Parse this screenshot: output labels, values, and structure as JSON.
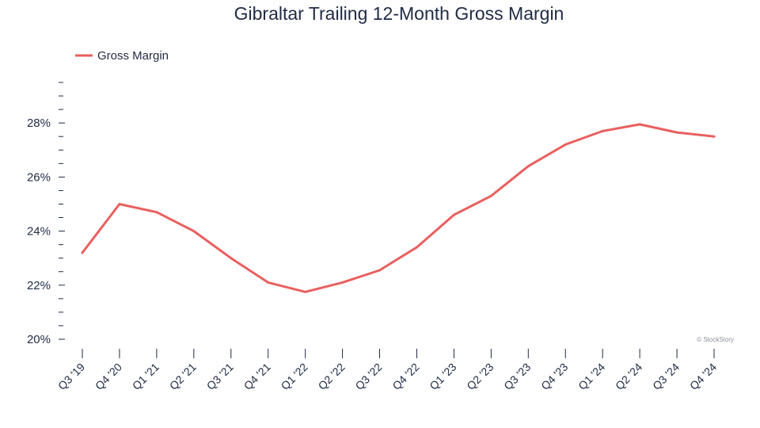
{
  "chart_data": {
    "type": "line",
    "title": "Gibraltar Trailing 12-Month Gross Margin",
    "categories": [
      "Q3 '19",
      "Q4 '20",
      "Q1 '21",
      "Q2 '21",
      "Q3 '21",
      "Q4 '21",
      "Q1 '22",
      "Q2 '22",
      "Q3 '22",
      "Q4 '22",
      "Q1 '23",
      "Q2 '23",
      "Q3 '23",
      "Q4 '23",
      "Q1 '24",
      "Q2 '24",
      "Q3 '24",
      "Q4 '24"
    ],
    "series": [
      {
        "name": "Gross Margin",
        "color": "#e8605f",
        "values": [
          23.2,
          25.0,
          24.7,
          24.0,
          23.0,
          22.1,
          21.75,
          22.1,
          22.55,
          23.4,
          24.6,
          25.3,
          26.4,
          27.2,
          27.7,
          27.95,
          27.65,
          27.5
        ]
      }
    ],
    "ylim": [
      20,
      29.5
    ],
    "yticks": [
      20,
      22,
      24,
      26,
      28
    ],
    "ytick_labels": [
      "20%",
      "22%",
      "24%",
      "26%",
      "28%"
    ],
    "xlabel": "",
    "ylabel": "",
    "grid": false,
    "legend": "top-left",
    "credit": "© StockStory"
  }
}
